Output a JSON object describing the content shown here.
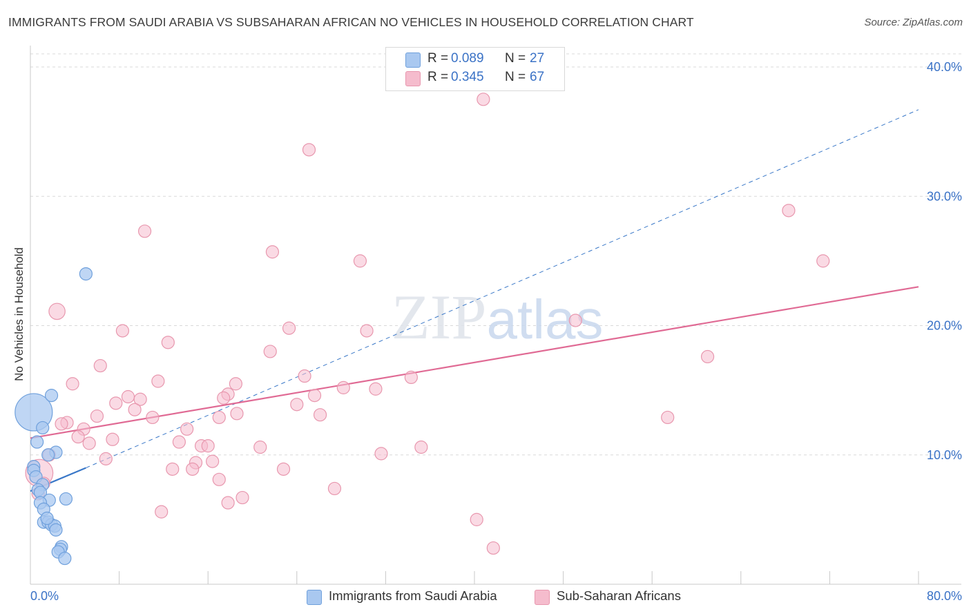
{
  "title": "IMMIGRANTS FROM SAUDI ARABIA VS SUBSAHARAN AFRICAN NO VEHICLES IN HOUSEHOLD CORRELATION CHART",
  "source": "Source: ZipAtlas.com",
  "legend_top": {
    "rows": [
      {
        "r_label": "R =",
        "r_value": "0.089",
        "n_label": "N =",
        "n_value": "27"
      },
      {
        "r_label": "R =",
        "r_value": "0.345",
        "n_label": "N =",
        "n_value": "67"
      }
    ]
  },
  "legend_bottom": [
    "Immigrants from Saudi Arabia",
    "Sub-Saharan Africans"
  ],
  "colors": {
    "blue_fill": "#a9c8f0",
    "blue_stroke": "#6fa0dc",
    "blue_line": "#3a78c8",
    "pink_fill": "#f5bccd",
    "pink_stroke": "#e897ae",
    "pink_line": "#e06a94",
    "tick_text": "#3a72c6",
    "grid": "#d8d8d8"
  },
  "chart_data": {
    "type": "scatter",
    "title": "IMMIGRANTS FROM SAUDI ARABIA VS SUBSAHARAN AFRICAN NO VEHICLES IN HOUSEHOLD CORRELATION CHART",
    "xlabel": "",
    "ylabel": "No Vehicles in Household",
    "xlim": [
      0,
      80
    ],
    "ylim": [
      0,
      40
    ],
    "x_tick_labels": [
      "0.0%",
      "80.0%"
    ],
    "y_ticks": [
      10,
      20,
      30,
      40
    ],
    "y_tick_labels": [
      "10.0%",
      "20.0%",
      "30.0%",
      "40.0%"
    ],
    "watermark": "ZIPatlas",
    "series": [
      {
        "name": "Immigrants from Saudi Arabia",
        "color": "blue",
        "points": [
          [
            0.3,
            13.3,
            3
          ],
          [
            5.0,
            24.0,
            1
          ],
          [
            1.9,
            14.6,
            1
          ],
          [
            1.1,
            12.1,
            1
          ],
          [
            0.6,
            11.0,
            1
          ],
          [
            2.3,
            10.2,
            1
          ],
          [
            1.6,
            10.0,
            1
          ],
          [
            0.3,
            9.1,
            1
          ],
          [
            0.3,
            8.8,
            1
          ],
          [
            0.5,
            8.3,
            1
          ],
          [
            1.1,
            7.7,
            1
          ],
          [
            0.7,
            7.3,
            1
          ],
          [
            0.9,
            7.1,
            1
          ],
          [
            3.2,
            6.6,
            1
          ],
          [
            1.7,
            6.5,
            1
          ],
          [
            0.9,
            6.3,
            1
          ],
          [
            1.2,
            5.8,
            1
          ],
          [
            1.2,
            4.8,
            1
          ],
          [
            1.6,
            4.8,
            1
          ],
          [
            1.9,
            4.6,
            1
          ],
          [
            2.2,
            4.5,
            1
          ],
          [
            2.3,
            4.2,
            1
          ],
          [
            2.8,
            2.9,
            1
          ],
          [
            2.7,
            2.7,
            1
          ],
          [
            2.5,
            2.5,
            1
          ],
          [
            3.1,
            2.0,
            1
          ],
          [
            1.5,
            5.1,
            1
          ]
        ]
      },
      {
        "name": "Sub-Saharan Africans",
        "color": "pink",
        "points": [
          [
            40.8,
            37.5,
            1
          ],
          [
            25.1,
            33.6,
            1
          ],
          [
            10.3,
            27.3,
            1
          ],
          [
            68.3,
            28.9,
            1
          ],
          [
            21.8,
            25.7,
            1
          ],
          [
            29.7,
            25.0,
            1
          ],
          [
            71.4,
            25.0,
            1
          ],
          [
            2.4,
            21.1,
            1.3
          ],
          [
            8.3,
            19.6,
            1
          ],
          [
            23.3,
            19.8,
            1
          ],
          [
            30.3,
            19.6,
            1
          ],
          [
            49.1,
            20.4,
            1
          ],
          [
            12.4,
            18.7,
            1
          ],
          [
            21.6,
            18.0,
            1
          ],
          [
            61.0,
            17.6,
            1
          ],
          [
            6.3,
            16.9,
            1
          ],
          [
            24.7,
            16.1,
            1
          ],
          [
            34.3,
            16.0,
            1
          ],
          [
            3.8,
            15.5,
            1
          ],
          [
            11.5,
            15.7,
            1
          ],
          [
            18.5,
            15.5,
            1
          ],
          [
            28.2,
            15.2,
            1
          ],
          [
            31.1,
            15.1,
            1
          ],
          [
            17.8,
            14.7,
            1
          ],
          [
            8.8,
            14.5,
            1
          ],
          [
            9.9,
            14.3,
            1
          ],
          [
            25.6,
            14.6,
            1
          ],
          [
            7.7,
            14.0,
            1
          ],
          [
            17.4,
            14.4,
            1
          ],
          [
            24.0,
            13.9,
            1
          ],
          [
            9.4,
            13.5,
            1
          ],
          [
            18.6,
            13.2,
            1
          ],
          [
            26.1,
            13.1,
            1
          ],
          [
            6.0,
            13.0,
            1
          ],
          [
            11.0,
            12.9,
            1
          ],
          [
            17.0,
            12.9,
            1
          ],
          [
            57.4,
            12.9,
            1
          ],
          [
            3.3,
            12.5,
            1
          ],
          [
            2.8,
            12.4,
            1
          ],
          [
            4.8,
            12.0,
            1
          ],
          [
            14.1,
            12.0,
            1
          ],
          [
            4.3,
            11.4,
            1
          ],
          [
            7.4,
            11.2,
            1
          ],
          [
            13.4,
            11.0,
            1
          ],
          [
            5.3,
            10.9,
            1
          ],
          [
            15.4,
            10.7,
            1
          ],
          [
            16.0,
            10.7,
            1
          ],
          [
            20.7,
            10.6,
            1
          ],
          [
            35.2,
            10.6,
            1
          ],
          [
            1.7,
            10.0,
            1
          ],
          [
            31.6,
            10.1,
            1
          ],
          [
            6.8,
            9.7,
            1
          ],
          [
            14.9,
            9.4,
            1
          ],
          [
            16.4,
            9.5,
            1
          ],
          [
            12.8,
            8.9,
            1
          ],
          [
            14.6,
            8.9,
            1
          ],
          [
            22.8,
            8.9,
            1
          ],
          [
            0.8,
            8.6,
            2.2
          ],
          [
            1.2,
            7.8,
            1
          ],
          [
            17.0,
            8.1,
            1
          ],
          [
            27.4,
            7.4,
            1
          ],
          [
            0.7,
            7.0,
            1
          ],
          [
            19.1,
            6.7,
            1
          ],
          [
            17.8,
            6.3,
            1
          ],
          [
            11.8,
            5.6,
            1
          ],
          [
            40.2,
            5.0,
            1
          ],
          [
            41.7,
            2.8,
            1
          ]
        ]
      }
    ],
    "trend_lines": [
      {
        "series": "Immigrants from Saudi Arabia",
        "style": "solid",
        "x": [
          0,
          5.0
        ],
        "y": [
          7.2,
          9.0
        ]
      },
      {
        "series": "Immigrants from Saudi Arabia",
        "style": "dashed",
        "x": [
          5.0,
          80
        ],
        "y": [
          9.0,
          36.7
        ]
      },
      {
        "series": "Sub-Saharan Africans",
        "style": "solid",
        "x": [
          0,
          80
        ],
        "y": [
          11.3,
          23.0
        ]
      }
    ]
  }
}
